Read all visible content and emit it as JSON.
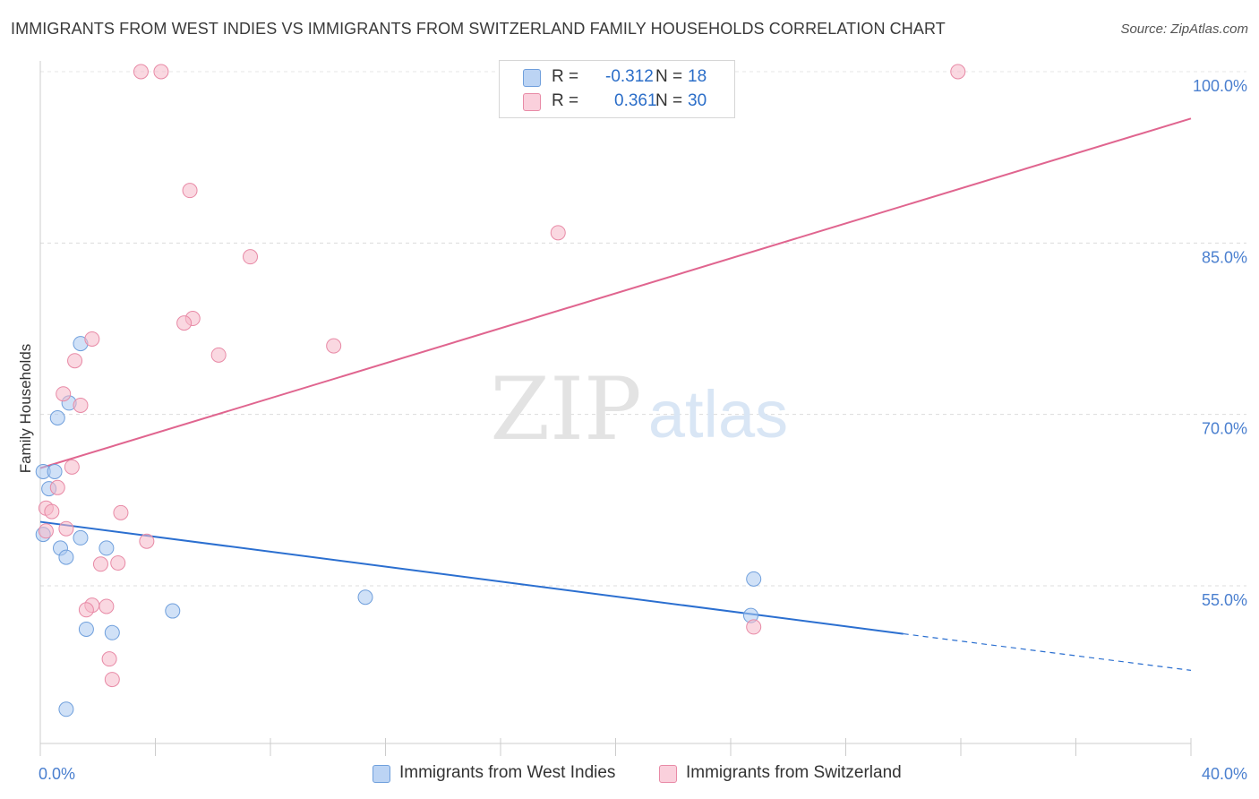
{
  "title": "IMMIGRANTS FROM WEST INDIES VS IMMIGRANTS FROM SWITZERLAND FAMILY HOUSEHOLDS CORRELATION CHART",
  "source": "Source: ZipAtlas.com",
  "watermark": {
    "zip": "ZIP",
    "atlas": "atlas"
  },
  "legend": {
    "rows": [
      {
        "r_label": "R =",
        "r_value": "-0.312",
        "n_label": "N =",
        "n_value": "18",
        "color": "#a9c8f0"
      },
      {
        "r_label": "R =",
        "r_value": "0.361",
        "n_label": "N =",
        "n_value": "30",
        "color": "#f5b8c9"
      }
    ]
  },
  "chart_data": {
    "type": "scatter",
    "ylabel": "Family Households",
    "xlim": [
      0,
      40
    ],
    "ylim": [
      40,
      102
    ],
    "x_tick_labels": [
      {
        "value": 0,
        "label": "0.0%"
      },
      {
        "value": 40,
        "label": "40.0%"
      }
    ],
    "y_tick_labels": [
      {
        "value": 55,
        "label": "55.0%"
      },
      {
        "value": 70,
        "label": "70.0%"
      },
      {
        "value": 85,
        "label": "85.0%"
      },
      {
        "value": 100,
        "label": "100.0%"
      }
    ],
    "grid": true,
    "series": [
      {
        "name": "Immigrants from West Indies",
        "color": "#a9c8f0",
        "stroke": "#6f9fdc",
        "line_color": "#2b6fd0",
        "points": [
          [
            0.1,
            65.0
          ],
          [
            0.3,
            63.5
          ],
          [
            0.5,
            65.0
          ],
          [
            0.6,
            69.7
          ],
          [
            1.0,
            71.0
          ],
          [
            1.4,
            76.2
          ],
          [
            0.1,
            59.5
          ],
          [
            0.7,
            58.3
          ],
          [
            0.9,
            57.5
          ],
          [
            1.4,
            59.2
          ],
          [
            2.3,
            58.3
          ],
          [
            1.6,
            51.2
          ],
          [
            2.5,
            50.9
          ],
          [
            4.6,
            52.8
          ],
          [
            11.3,
            54.0
          ],
          [
            24.8,
            55.6
          ],
          [
            24.7,
            52.4
          ],
          [
            0.9,
            44.2
          ]
        ],
        "trend": {
          "x0": 0,
          "y0": 60.6,
          "x1": 30.0,
          "y1": 50.8,
          "dash_x1": 40,
          "dash_y1": 47.6
        }
      },
      {
        "name": "Immigrants from Switzerland",
        "color": "#f5b8c9",
        "stroke": "#e88aa6",
        "line_color": "#e0658f",
        "points": [
          [
            3.5,
            100.0
          ],
          [
            4.2,
            100.0
          ],
          [
            31.9,
            100.0
          ],
          [
            5.2,
            89.6
          ],
          [
            18.0,
            85.9
          ],
          [
            7.3,
            83.8
          ],
          [
            5.3,
            78.4
          ],
          [
            5.0,
            78.0
          ],
          [
            1.8,
            76.6
          ],
          [
            10.2,
            76.0
          ],
          [
            6.2,
            75.2
          ],
          [
            1.2,
            74.7
          ],
          [
            0.8,
            71.8
          ],
          [
            1.4,
            70.8
          ],
          [
            1.1,
            65.4
          ],
          [
            0.6,
            63.6
          ],
          [
            0.2,
            61.8
          ],
          [
            0.4,
            61.5
          ],
          [
            2.8,
            61.4
          ],
          [
            0.9,
            60.0
          ],
          [
            0.2,
            59.8
          ],
          [
            3.7,
            58.9
          ],
          [
            2.1,
            56.9
          ],
          [
            2.7,
            57.0
          ],
          [
            1.8,
            53.3
          ],
          [
            2.3,
            53.2
          ],
          [
            1.6,
            52.9
          ],
          [
            2.4,
            48.6
          ],
          [
            2.5,
            46.8
          ],
          [
            24.8,
            51.4
          ]
        ],
        "trend": {
          "x0": 0,
          "y0": 65.3,
          "x1": 40,
          "y1": 95.9
        }
      }
    ]
  }
}
